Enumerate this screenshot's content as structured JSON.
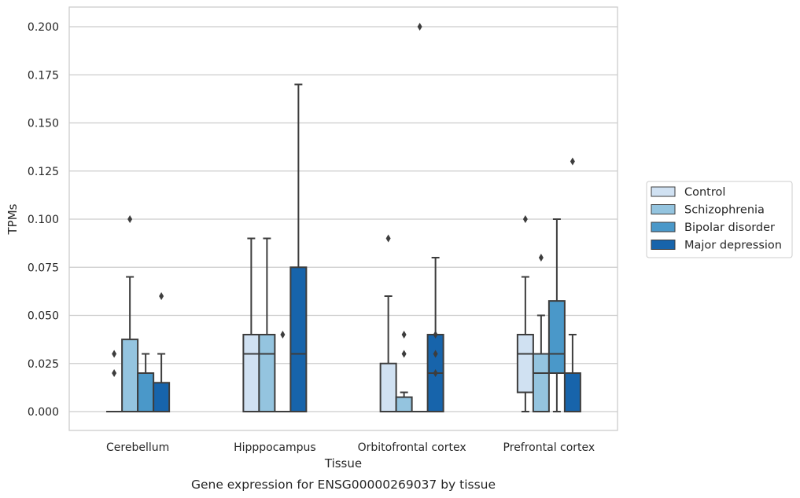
{
  "chart_data": {
    "type": "boxplot",
    "caption": "Gene expression for ENSG00000269037 by tissue",
    "xlabel": "Tissue",
    "ylabel": "TPMs",
    "ylim": [
      -0.01,
      0.21
    ],
    "yticks": [
      "0.000",
      "0.025",
      "0.050",
      "0.075",
      "0.100",
      "0.125",
      "0.150",
      "0.175",
      "0.200"
    ],
    "grid": "horizontal",
    "legend_position": "right",
    "categories": [
      "Cerebellum",
      "Hipppocampus",
      "Orbitofrontal cortex",
      "Prefrontal cortex"
    ],
    "series": [
      {
        "name": "Control",
        "color": "#d0e1f2",
        "boxes": [
          {
            "whisker_low": 0,
            "q1": 0,
            "median": 0,
            "q3": 0,
            "whisker_high": 0,
            "outliers": [
              0.02,
              0.03
            ]
          },
          {
            "whisker_low": 0,
            "q1": 0,
            "median": 0.03,
            "q3": 0.04,
            "whisker_high": 0.09,
            "outliers": []
          },
          {
            "whisker_low": 0,
            "q1": 0,
            "median": 0,
            "q3": 0.025,
            "whisker_high": 0.06,
            "outliers": [
              0.09
            ]
          },
          {
            "whisker_low": 0,
            "q1": 0.01,
            "median": 0.03,
            "q3": 0.04,
            "whisker_high": 0.07,
            "outliers": [
              0.1
            ]
          }
        ]
      },
      {
        "name": "Schizophrenia",
        "color": "#94c4df",
        "boxes": [
          {
            "whisker_low": 0,
            "q1": 0,
            "median": 0,
            "q3": 0.0375,
            "whisker_high": 0.07,
            "outliers": [
              0.1
            ]
          },
          {
            "whisker_low": 0,
            "q1": 0,
            "median": 0.03,
            "q3": 0.04,
            "whisker_high": 0.09,
            "outliers": []
          },
          {
            "whisker_low": 0,
            "q1": 0,
            "median": 0,
            "q3": 0.0075,
            "whisker_high": 0.01,
            "outliers": [
              0.03,
              0.04
            ]
          },
          {
            "whisker_low": 0,
            "q1": 0,
            "median": 0.02,
            "q3": 0.03,
            "whisker_high": 0.05,
            "outliers": [
              0.08
            ]
          }
        ]
      },
      {
        "name": "Bipolar disorder",
        "color": "#4a98c9",
        "boxes": [
          {
            "whisker_low": 0,
            "q1": 0,
            "median": 0,
            "q3": 0.02,
            "whisker_high": 0.03,
            "outliers": []
          },
          {
            "whisker_low": 0,
            "q1": 0,
            "median": 0,
            "q3": 0,
            "whisker_high": 0,
            "outliers": [
              0.04
            ]
          },
          {
            "whisker_low": 0,
            "q1": 0,
            "median": 0,
            "q3": 0,
            "whisker_high": 0,
            "outliers": [
              0.2
            ]
          },
          {
            "whisker_low": 0,
            "q1": 0.02,
            "median": 0.03,
            "q3": 0.0575,
            "whisker_high": 0.1,
            "outliers": []
          }
        ]
      },
      {
        "name": "Major depression",
        "color": "#1764ab",
        "boxes": [
          {
            "whisker_low": 0,
            "q1": 0,
            "median": 0,
            "q3": 0.015,
            "whisker_high": 0.03,
            "outliers": [
              0.06
            ]
          },
          {
            "whisker_low": 0,
            "q1": 0,
            "median": 0.03,
            "q3": 0.075,
            "whisker_high": 0.17,
            "outliers": []
          },
          {
            "whisker_low": 0,
            "q1": 0,
            "median": 0.02,
            "q3": 0.04,
            "whisker_high": 0.08,
            "outliers": [
              0.02,
              0.03,
              0.04
            ]
          },
          {
            "whisker_low": 0,
            "q1": 0,
            "median": 0,
            "q3": 0.02,
            "whisker_high": 0.04,
            "outliers": [
              0.13
            ]
          }
        ]
      }
    ],
    "colors": {
      "line": "#3d3d3d",
      "grid": "#cccccc",
      "frame": "#cccccc"
    }
  }
}
